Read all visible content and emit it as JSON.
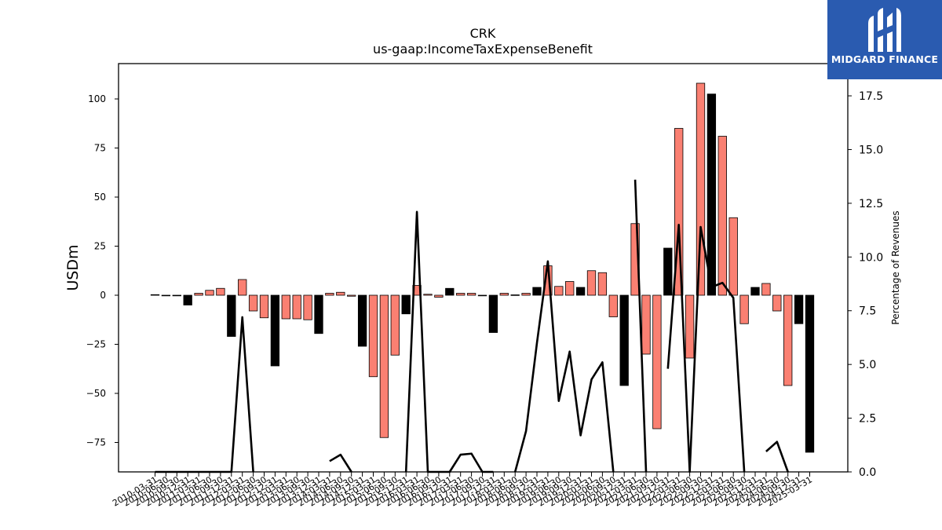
{
  "brand": {
    "name": "MIDGARD FINANCE",
    "color": "#2a5bb0"
  },
  "chart_data": {
    "type": "bar",
    "title": "CRK",
    "subtitle": "us-gaap:IncomeTaxExpenseBenefit",
    "ylabel": "USDm",
    "y2label": "Percentage of Revenues",
    "ylim": [
      -90,
      118
    ],
    "y2lim": [
      0,
      19
    ],
    "yticks": [
      -75,
      -50,
      -25,
      0,
      25,
      50,
      75,
      100
    ],
    "y2ticks": [
      0.0,
      2.5,
      5.0,
      7.5,
      10.0,
      12.5,
      15.0,
      17.5
    ],
    "grid": false,
    "colors": {
      "quarter": "#fa8072",
      "annual": "#000000",
      "line": "#000000"
    },
    "categories": [
      "2010-03-31",
      "2010-06-30",
      "2010-09-30",
      "2010-12-31",
      "2011-03-31",
      "2011-06-30",
      "2011-09-30",
      "2011-12-31",
      "2012-03-31",
      "2012-06-30",
      "2012-09-30",
      "2012-12-31",
      "2013-03-31",
      "2013-06-30",
      "2013-09-30",
      "2013-12-31",
      "2014-03-31",
      "2014-06-30",
      "2014-09-30",
      "2014-12-31",
      "2015-03-31",
      "2015-06-30",
      "2015-09-30",
      "2015-12-31",
      "2016-03-31",
      "2016-06-30",
      "2016-09-30",
      "2016-12-31",
      "2017-03-31",
      "2017-06-30",
      "2017-09-30",
      "2017-12-31",
      "2018-03-31",
      "2018-06-30",
      "2018-09-30",
      "2018-12-31",
      "2019-03-31",
      "2019-06-30",
      "2019-09-30",
      "2019-12-31",
      "2020-03-31",
      "2020-06-30",
      "2020-09-30",
      "2020-12-31",
      "2021-03-31",
      "2021-06-30",
      "2021-09-30",
      "2021-12-31",
      "2022-03-31",
      "2022-06-30",
      "2022-09-30",
      "2022-12-31",
      "2023-03-31",
      "2023-06-30",
      "2023-09-30",
      "2023-12-31",
      "2024-03-31",
      "2024-06-30",
      "2024-09-30",
      "2024-12-31",
      "2025-03-31"
    ],
    "series": [
      {
        "kind": "bar",
        "values": [
          0.3,
          -0.3,
          -0.3,
          -5,
          1,
          2.5,
          3.5,
          -21,
          8,
          -8,
          -11.5,
          -36,
          -12,
          -12,
          -12.5,
          -19.5,
          1,
          1.5,
          -0.5,
          -26,
          -41.5,
          -72.5,
          -30.5,
          -9.5,
          5,
          0.5,
          -1,
          3.5,
          1,
          1,
          -0.2,
          -19,
          1,
          0.2,
          1,
          4,
          15,
          4.5,
          7,
          4,
          12.5,
          11.5,
          -11,
          -46,
          36.5,
          -30,
          -68,
          24,
          85,
          -32,
          108,
          102.5,
          81,
          39.5,
          -14.5,
          4,
          6,
          -8,
          -46,
          -14.5,
          -80
        ],
        "annual": [
          false,
          false,
          false,
          true,
          false,
          false,
          false,
          true,
          false,
          false,
          false,
          true,
          false,
          false,
          false,
          true,
          false,
          false,
          false,
          true,
          false,
          false,
          false,
          true,
          false,
          false,
          false,
          true,
          false,
          false,
          false,
          true,
          false,
          false,
          false,
          true,
          false,
          false,
          false,
          true,
          false,
          false,
          false,
          true,
          false,
          false,
          false,
          true,
          false,
          false,
          false,
          true,
          false,
          false,
          false,
          true,
          false,
          false,
          false,
          true,
          true
        ]
      },
      {
        "kind": "line",
        "axis": "right",
        "values": [
          0,
          0,
          0,
          0,
          0,
          0,
          0,
          0,
          7.2,
          0,
          null,
          0,
          null,
          null,
          null,
          null,
          0.5,
          0.8,
          0,
          null,
          null,
          null,
          null,
          0,
          12.1,
          0,
          0,
          0,
          0.8,
          0.85,
          0,
          0,
          null,
          0,
          1.9,
          6,
          9.8,
          3.3,
          5.6,
          1.7,
          4.3,
          5.1,
          0,
          null,
          13.6,
          0,
          null,
          4.8,
          11.5,
          0,
          11.4,
          8.6,
          8.8,
          8.1,
          0,
          null,
          0.95,
          1.4,
          0,
          null,
          null
        ]
      }
    ]
  }
}
